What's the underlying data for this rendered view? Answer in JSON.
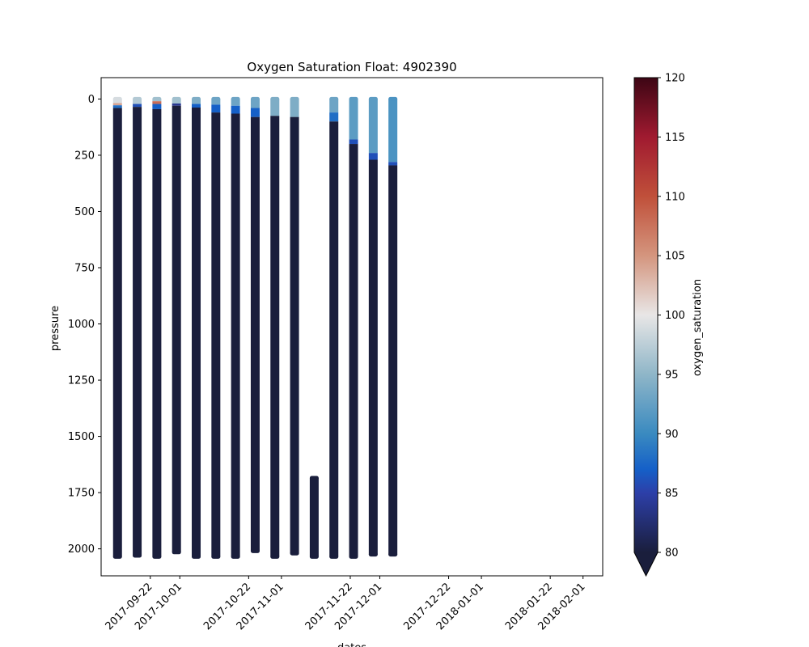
{
  "chart_data": {
    "type": "scatter",
    "title": "Oxygen Saturation Float: 4902390",
    "xlabel": "dates",
    "ylabel": "pressure",
    "x_range": [
      "2017-09-07",
      "2018-02-07"
    ],
    "x_ticks": [
      "2017-09-22",
      "2017-10-01",
      "2017-10-22",
      "2017-11-01",
      "2017-11-22",
      "2017-12-01",
      "2017-12-22",
      "2018-01-01",
      "2018-01-22",
      "2018-02-01"
    ],
    "y_range": [
      2120,
      -95
    ],
    "y_inverted": true,
    "y_ticks": [
      0,
      250,
      500,
      750,
      1000,
      1250,
      1500,
      1750,
      2000
    ],
    "grid": false,
    "colorbar": {
      "label": "oxygen_saturation",
      "range": [
        80,
        120
      ],
      "ticks": [
        80,
        85,
        90,
        95,
        100,
        105,
        110,
        115,
        120
      ],
      "extend": "min",
      "colormap": [
        {
          "value": 80,
          "color": "#1a1e3c"
        },
        {
          "value": 85,
          "color": "#2d3fa8"
        },
        {
          "value": 87,
          "color": "#1560c8"
        },
        {
          "value": 90,
          "color": "#3a8ac0"
        },
        {
          "value": 95,
          "color": "#8fb6c8"
        },
        {
          "value": 100,
          "color": "#e8e6e6"
        },
        {
          "value": 105,
          "color": "#d4957e"
        },
        {
          "value": 110,
          "color": "#c0503a"
        },
        {
          "value": 115,
          "color": "#a01a30"
        },
        {
          "value": 120,
          "color": "#3d0614"
        }
      ]
    },
    "profiles": [
      {
        "date": "2017-09-12",
        "pmin": 0,
        "pmax": 2035,
        "segments": [
          {
            "top": 0,
            "sat": 99
          },
          {
            "top": 18,
            "sat": 104
          },
          {
            "top": 28,
            "sat": 88
          },
          {
            "top": 40,
            "sat": 80
          }
        ]
      },
      {
        "date": "2017-09-18",
        "pmin": 0,
        "pmax": 2030,
        "segments": [
          {
            "top": 0,
            "sat": 97
          },
          {
            "top": 22,
            "sat": 86
          },
          {
            "top": 35,
            "sat": 80
          }
        ]
      },
      {
        "date": "2017-09-24",
        "pmin": 0,
        "pmax": 2035,
        "segments": [
          {
            "top": 0,
            "sat": 96
          },
          {
            "top": 10,
            "sat": 108
          },
          {
            "top": 22,
            "sat": 87
          },
          {
            "top": 45,
            "sat": 80
          }
        ]
      },
      {
        "date": "2017-09-30",
        "pmin": 0,
        "pmax": 2015,
        "segments": [
          {
            "top": 0,
            "sat": 96
          },
          {
            "top": 20,
            "sat": 84
          },
          {
            "top": 30,
            "sat": 80
          }
        ]
      },
      {
        "date": "2017-10-06",
        "pmin": 0,
        "pmax": 2035,
        "segments": [
          {
            "top": 0,
            "sat": 94
          },
          {
            "top": 22,
            "sat": 87
          },
          {
            "top": 38,
            "sat": 80
          }
        ]
      },
      {
        "date": "2017-10-12",
        "pmin": 0,
        "pmax": 2035,
        "segments": [
          {
            "top": 0,
            "sat": 93
          },
          {
            "top": 25,
            "sat": 87
          },
          {
            "top": 60,
            "sat": 80
          }
        ]
      },
      {
        "date": "2017-10-18",
        "pmin": 0,
        "pmax": 2035,
        "segments": [
          {
            "top": 0,
            "sat": 93
          },
          {
            "top": 30,
            "sat": 87
          },
          {
            "top": 65,
            "sat": 80
          }
        ]
      },
      {
        "date": "2017-10-24",
        "pmin": 0,
        "pmax": 2010,
        "segments": [
          {
            "top": 0,
            "sat": 93
          },
          {
            "top": 40,
            "sat": 87
          },
          {
            "top": 80,
            "sat": 80
          }
        ]
      },
      {
        "date": "2017-10-30",
        "pmin": 0,
        "pmax": 2035,
        "segments": [
          {
            "top": 0,
            "sat": 94
          },
          {
            "top": 75,
            "sat": 80
          }
        ]
      },
      {
        "date": "2017-11-05",
        "pmin": 0,
        "pmax": 2020,
        "segments": [
          {
            "top": 0,
            "sat": 94
          },
          {
            "top": 80,
            "sat": 80
          }
        ]
      },
      {
        "date": "2017-11-11",
        "pmin": 1685,
        "pmax": 2035,
        "segments": [
          {
            "top": 1685,
            "sat": 80
          }
        ]
      },
      {
        "date": "2017-11-17",
        "pmin": 0,
        "pmax": 2035,
        "segments": [
          {
            "top": 0,
            "sat": 93
          },
          {
            "top": 60,
            "sat": 88
          },
          {
            "top": 100,
            "sat": 80
          }
        ]
      },
      {
        "date": "2017-11-23",
        "pmin": 0,
        "pmax": 2035,
        "segments": [
          {
            "top": 0,
            "sat": 92
          },
          {
            "top": 180,
            "sat": 86
          },
          {
            "top": 200,
            "sat": 80
          }
        ]
      },
      {
        "date": "2017-11-29",
        "pmin": 0,
        "pmax": 2025,
        "segments": [
          {
            "top": 0,
            "sat": 92
          },
          {
            "top": 240,
            "sat": 86
          },
          {
            "top": 270,
            "sat": 80
          }
        ]
      },
      {
        "date": "2017-12-05",
        "pmin": 0,
        "pmax": 2025,
        "segments": [
          {
            "top": 0,
            "sat": 91
          },
          {
            "top": 280,
            "sat": 86
          },
          {
            "top": 295,
            "sat": 80
          }
        ]
      }
    ]
  }
}
